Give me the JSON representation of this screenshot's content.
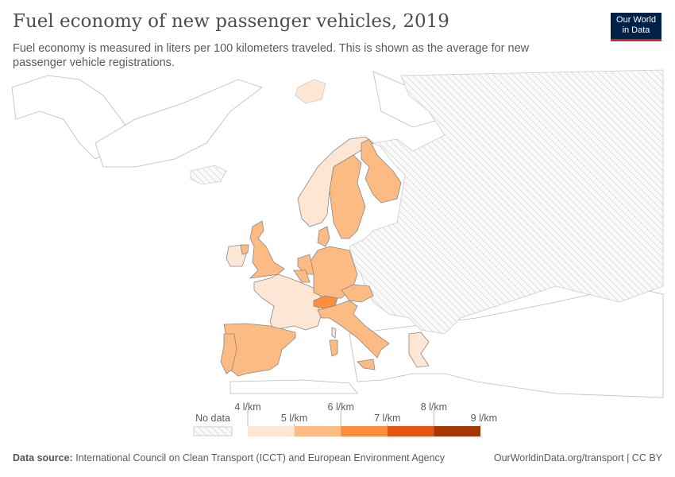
{
  "title": "Fuel economy of new passenger vehicles, 2019",
  "subtitle": "Fuel economy is measured in liters per 100 kilometers traveled. This is shown as the average for new passenger vehicle registrations.",
  "logo": {
    "line1": "Our World",
    "line2": "in Data"
  },
  "legend": {
    "no_data": "No data",
    "ticks": [
      "4 l/km",
      "5 l/km",
      "6 l/km",
      "7 l/km",
      "8 l/km",
      "9 l/km"
    ],
    "colors": [
      "#fee6d5",
      "#fdbb84",
      "#fc8d3c",
      "#e6550d",
      "#a63603"
    ],
    "no_data_color": "#e8e8e8"
  },
  "chart_data": {
    "type": "choropleth",
    "bins": [
      [
        4,
        5
      ],
      [
        5,
        6
      ],
      [
        6,
        7
      ],
      [
        7,
        8
      ],
      [
        8,
        9
      ]
    ],
    "countries": {
      "France": "4-5",
      "Ireland": "4-5",
      "Norway": "4-5",
      "Greece": "4-5",
      "Spain": "5-6",
      "Portugal": "5-6",
      "United Kingdom": "5-6",
      "Sweden": "5-6",
      "Finland": "5-6",
      "Denmark": "5-6",
      "Germany": "5-6",
      "Netherlands": "5-6",
      "Belgium": "5-6",
      "Luxembourg": "5-6",
      "Austria": "5-6",
      "Italy": "5-6",
      "Switzerland": "6-7"
    }
  },
  "footer": {
    "source_label": "Data source:",
    "source": "International Council on Clean Transport (ICCT) and European Environment Agency",
    "url": "OurWorldinData.org/transport | CC BY"
  }
}
